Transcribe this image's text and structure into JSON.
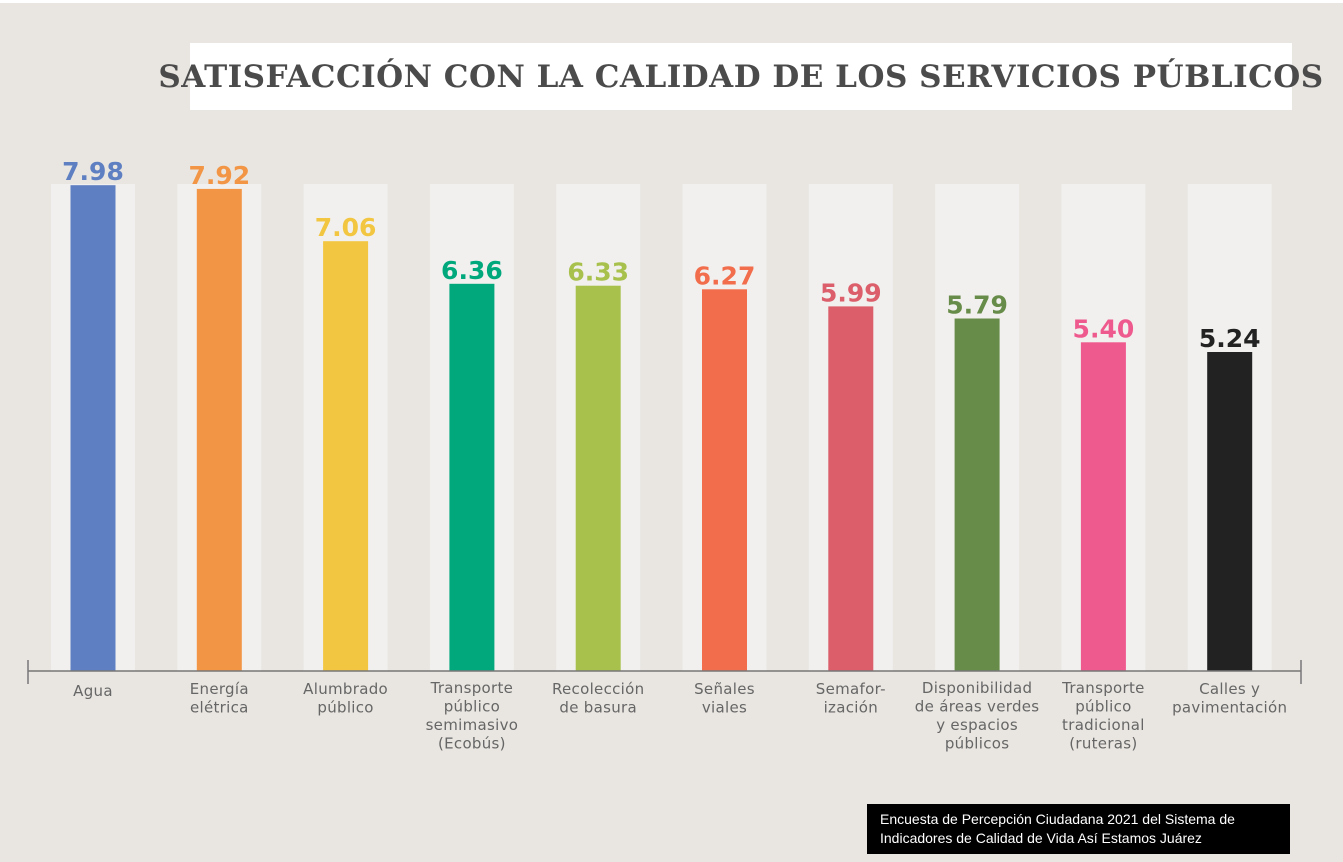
{
  "chart_data": {
    "type": "bar",
    "title": "SATISFACCIÓN CON LA CALIDAD DE LOS SERVICIOS PÚBLICOS",
    "categories": [
      [
        "Agua"
      ],
      [
        "Energía",
        "elétrica"
      ],
      [
        "Alumbrado",
        "público"
      ],
      [
        "Transporte",
        "público",
        "semimasivo",
        "(Ecobús)"
      ],
      [
        "Recolección",
        "de basura"
      ],
      [
        "Señales",
        "viales"
      ],
      [
        "Semafor-",
        "ización"
      ],
      [
        "Disponibilidad",
        "de áreas verdes",
        "y espacios",
        "públicos"
      ],
      [
        "Transporte",
        "público",
        "tradicional",
        "(ruteras)"
      ],
      [
        "Calles y",
        "pavimentación"
      ]
    ],
    "values": [
      7.98,
      7.92,
      7.06,
      6.36,
      6.33,
      6.27,
      5.99,
      5.79,
      5.4,
      5.24
    ],
    "value_labels": [
      "7.98",
      "7.92",
      "7.06",
      "6.36",
      "6.33",
      "6.27",
      "5.99",
      "5.79",
      "5.40",
      "5.24"
    ],
    "colors": [
      "#5e7fc1",
      "#f29545",
      "#f2c641",
      "#00a87c",
      "#a8c14d",
      "#f26d4b",
      "#db5e6a",
      "#678b48",
      "#ef5a8e",
      "#222222"
    ],
    "ylim": [
      0,
      8
    ],
    "xlabel": "",
    "ylabel": "",
    "grid": false
  },
  "source": {
    "line1": "Encuesta de Percepción Ciudadana 2021 del Sistema de",
    "line2": "Indicadores de Calidad de Vida Así Estamos Juárez"
  }
}
